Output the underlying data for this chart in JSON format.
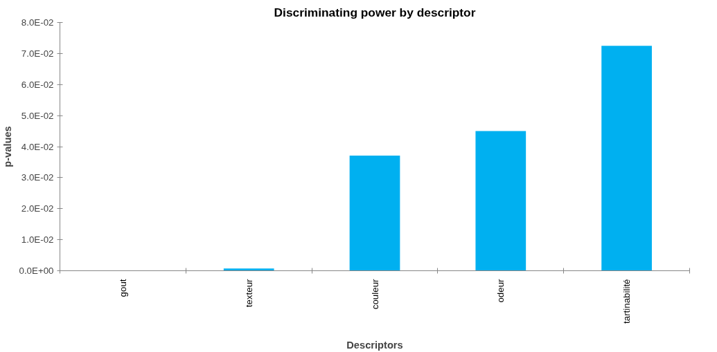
{
  "chart_data": {
    "type": "bar",
    "title": "Discriminating power by descriptor",
    "xlabel": "Descriptors",
    "ylabel": "p-values",
    "categories": [
      "gout",
      "texteur",
      "couleur",
      "odeur",
      "tartinabilité"
    ],
    "values": [
      0,
      0.0007,
      0.0371,
      0.045,
      0.0725
    ],
    "color": "#00b0f0",
    "ylim": [
      0,
      0.08
    ],
    "yticks": [
      {
        "value": 0,
        "label": "0.0E+00"
      },
      {
        "value": 0.01,
        "label": "1.0E-02"
      },
      {
        "value": 0.02,
        "label": "2.0E-02"
      },
      {
        "value": 0.03,
        "label": "3.0E-02"
      },
      {
        "value": 0.04,
        "label": "4.0E-02"
      },
      {
        "value": 0.05,
        "label": "5.0E-02"
      },
      {
        "value": 0.06,
        "label": "6.0E-02"
      },
      {
        "value": 0.07,
        "label": "7.0E-02"
      },
      {
        "value": 0.08,
        "label": "8.0E-02"
      }
    ],
    "grid": false
  }
}
